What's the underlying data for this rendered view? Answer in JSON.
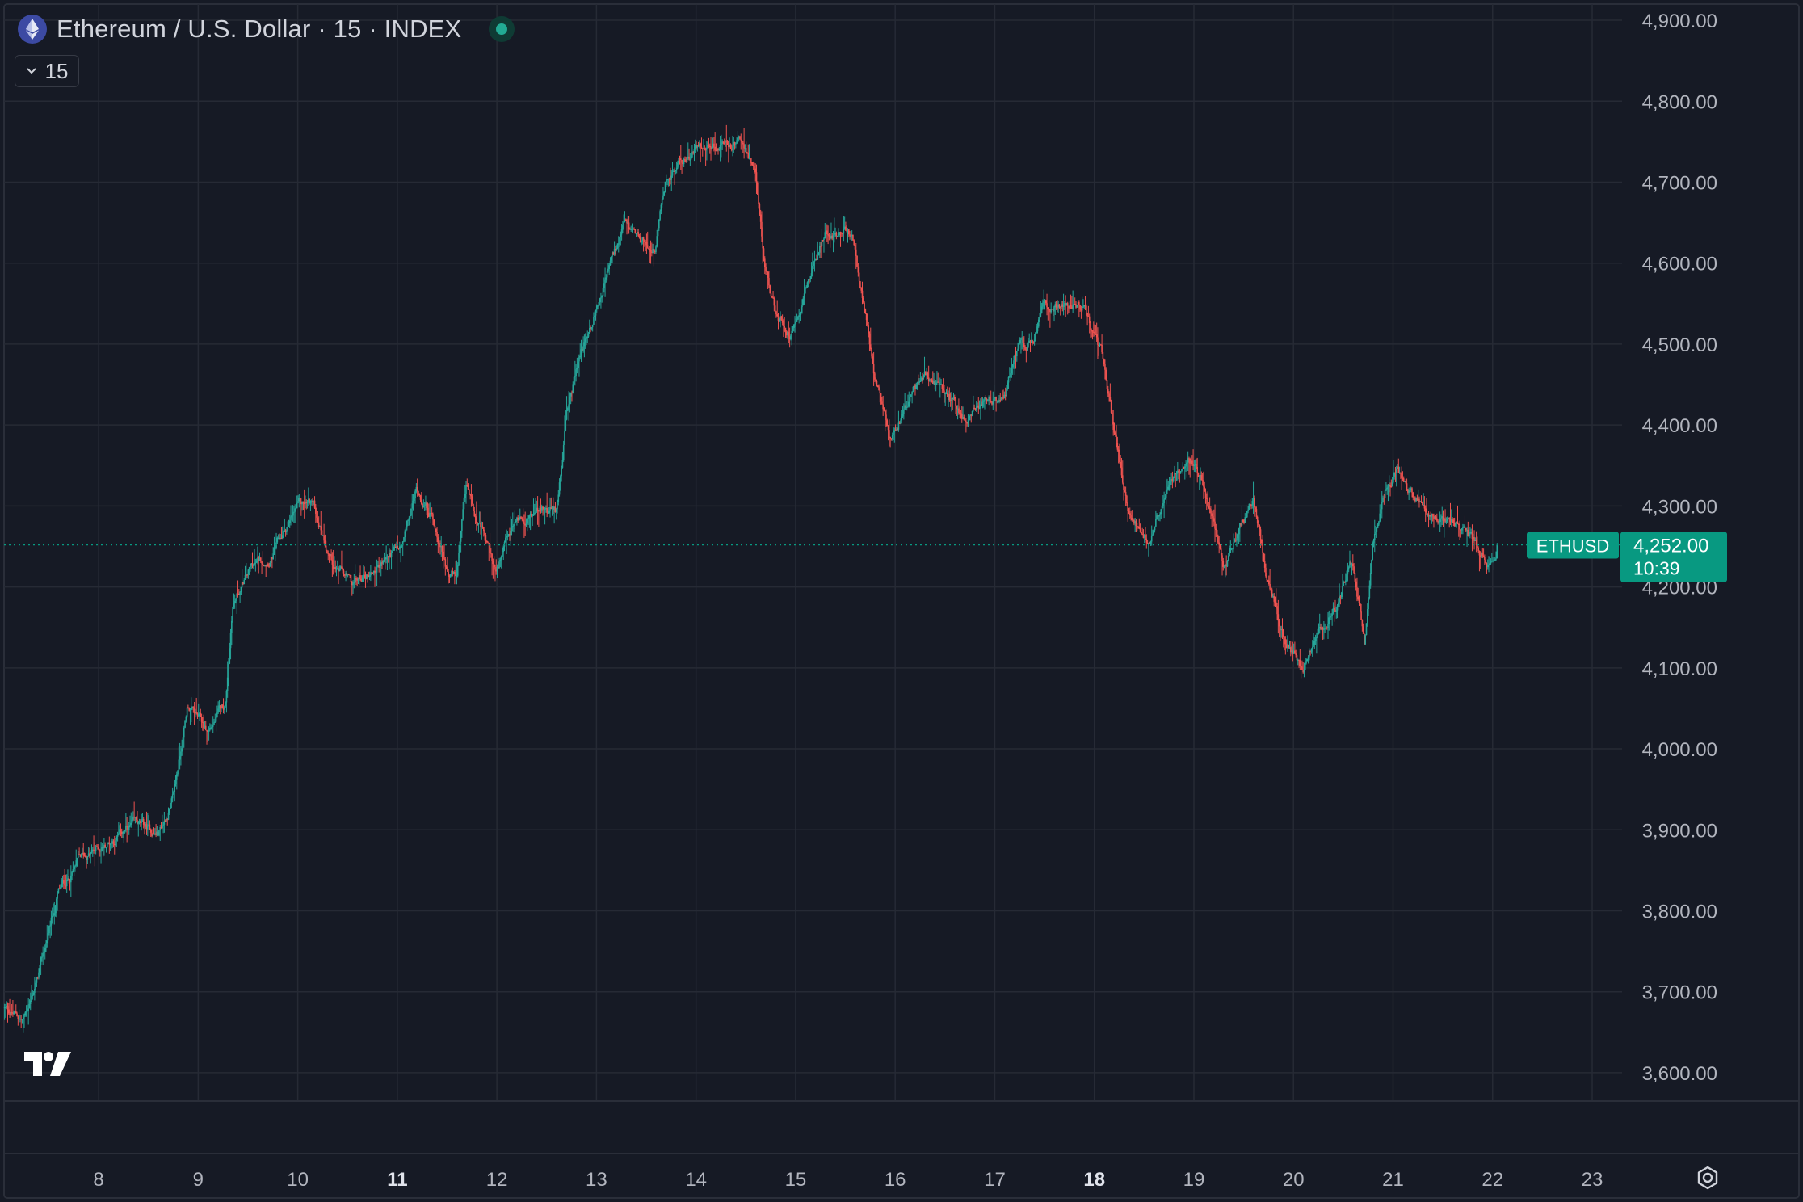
{
  "header": {
    "title": "Ethereum / U.S. Dollar · 15 · INDEX",
    "interval_label": "15",
    "status": "market-live"
  },
  "icons": {
    "symbol": "ethereum-icon",
    "interval_toggle": "chevron-down-icon",
    "brand": "tradingview-logo",
    "settings": "settings-gear-icon"
  },
  "colors": {
    "background": "#161a25",
    "grid": "#262a35",
    "up": "#26a69a",
    "down": "#ef5350",
    "last_price": "#089981",
    "axis_text": "#b2b5be"
  },
  "chart_data": {
    "type": "candlestick",
    "symbol": "ETHUSD",
    "interval": "15",
    "title": "Ethereum / U.S. Dollar · 15 · INDEX",
    "y_axis": {
      "ticks": [
        "3,600.00",
        "3,700.00",
        "3,800.00",
        "3,900.00",
        "4,000.00",
        "4,100.00",
        "4,200.00",
        "4,300.00",
        "4,400.00",
        "4,500.00",
        "4,600.00",
        "4,700.00",
        "4,800.00",
        "4,900.00"
      ],
      "tick_values": [
        3600,
        3700,
        3800,
        3900,
        4000,
        4100,
        4200,
        4300,
        4400,
        4500,
        4600,
        4700,
        4800,
        4900
      ],
      "range": [
        3565,
        4920
      ],
      "side": "right"
    },
    "x_axis": {
      "ticks": [
        "8",
        "9",
        "10",
        "11",
        "12",
        "13",
        "14",
        "15",
        "16",
        "17",
        "18",
        "19",
        "20",
        "21",
        "22",
        "23"
      ],
      "tick_values": [
        8,
        9,
        10,
        11,
        12,
        13,
        14,
        15,
        16,
        17,
        18,
        19,
        20,
        21,
        22,
        23
      ],
      "bold_ticks": [
        "11",
        "18"
      ],
      "range": [
        7.05,
        23.3
      ]
    },
    "grid": true,
    "last_price": {
      "label": "ETHUSD",
      "value": 4252.0,
      "value_text": "4,252.00",
      "countdown": "10:39"
    },
    "price_path": [
      [
        7.05,
        3680
      ],
      [
        7.25,
        3665
      ],
      [
        7.4,
        3720
      ],
      [
        7.6,
        3820
      ],
      [
        7.8,
        3860
      ],
      [
        8.05,
        3880
      ],
      [
        8.35,
        3905
      ],
      [
        8.6,
        3895
      ],
      [
        8.75,
        3935
      ],
      [
        8.9,
        4055
      ],
      [
        9.1,
        4020
      ],
      [
        9.28,
        4055
      ],
      [
        9.35,
        4180
      ],
      [
        9.55,
        4225
      ],
      [
        9.75,
        4240
      ],
      [
        10.0,
        4295
      ],
      [
        10.15,
        4305
      ],
      [
        10.35,
        4235
      ],
      [
        10.55,
        4200
      ],
      [
        10.8,
        4225
      ],
      [
        10.95,
        4240
      ],
      [
        11.05,
        4245
      ],
      [
        11.2,
        4320
      ],
      [
        11.35,
        4290
      ],
      [
        11.5,
        4225
      ],
      [
        11.6,
        4210
      ],
      [
        11.7,
        4320
      ],
      [
        11.85,
        4270
      ],
      [
        12.0,
        4215
      ],
      [
        12.2,
        4280
      ],
      [
        12.4,
        4295
      ],
      [
        12.6,
        4290
      ],
      [
        12.7,
        4410
      ],
      [
        12.85,
        4490
      ],
      [
        12.97,
        4530
      ],
      [
        13.1,
        4585
      ],
      [
        13.3,
        4645
      ],
      [
        13.4,
        4625
      ],
      [
        13.6,
        4620
      ],
      [
        13.7,
        4700
      ],
      [
        13.85,
        4725
      ],
      [
        14.05,
        4745
      ],
      [
        14.3,
        4745
      ],
      [
        14.5,
        4745
      ],
      [
        14.6,
        4700
      ],
      [
        14.7,
        4590
      ],
      [
        14.8,
        4540
      ],
      [
        14.95,
        4515
      ],
      [
        15.1,
        4575
      ],
      [
        15.3,
        4635
      ],
      [
        15.5,
        4645
      ],
      [
        15.6,
        4620
      ],
      [
        15.8,
        4450
      ],
      [
        15.95,
        4390
      ],
      [
        16.1,
        4425
      ],
      [
        16.3,
        4460
      ],
      [
        16.5,
        4440
      ],
      [
        16.7,
        4410
      ],
      [
        16.9,
        4425
      ],
      [
        17.05,
        4420
      ],
      [
        17.25,
        4490
      ],
      [
        17.4,
        4500
      ],
      [
        17.5,
        4545
      ],
      [
        17.7,
        4555
      ],
      [
        17.9,
        4545
      ],
      [
        18.0,
        4510
      ],
      [
        18.1,
        4480
      ],
      [
        18.2,
        4400
      ],
      [
        18.35,
        4290
      ],
      [
        18.55,
        4255
      ],
      [
        18.75,
        4330
      ],
      [
        18.95,
        4370
      ],
      [
        19.1,
        4325
      ],
      [
        19.3,
        4225
      ],
      [
        19.45,
        4265
      ],
      [
        19.6,
        4310
      ],
      [
        19.75,
        4210
      ],
      [
        19.9,
        4140
      ],
      [
        20.1,
        4100
      ],
      [
        20.2,
        4135
      ],
      [
        20.45,
        4180
      ],
      [
        20.6,
        4230
      ],
      [
        20.72,
        4130
      ],
      [
        20.8,
        4260
      ],
      [
        20.95,
        4330
      ],
      [
        21.05,
        4345
      ],
      [
        21.2,
        4310
      ],
      [
        21.45,
        4285
      ],
      [
        21.65,
        4280
      ],
      [
        21.8,
        4255
      ],
      [
        21.95,
        4235
      ],
      [
        22.05,
        4252
      ]
    ]
  }
}
